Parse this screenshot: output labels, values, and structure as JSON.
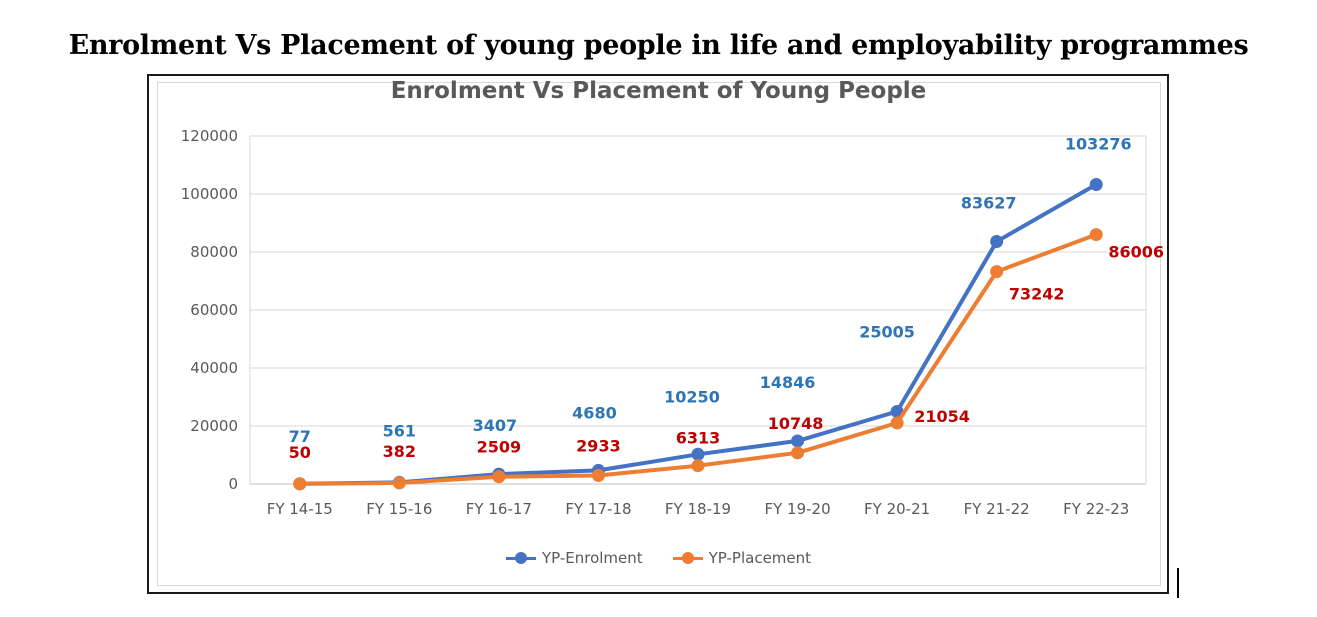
{
  "page": {
    "heading": "Enrolment Vs Placement of young people in life and employability programmes"
  },
  "chart_data": {
    "type": "line",
    "title": "Enrolment Vs Placement of Young People",
    "xlabel": "",
    "ylabel": "",
    "categories": [
      "FY 14-15",
      "FY 15-16",
      "FY 16-17",
      "FY 17-18",
      "FY 18-19",
      "FY 19-20",
      "FY 20-21",
      "FY 21-22",
      "FY 22-23"
    ],
    "ylim": [
      0,
      120000
    ],
    "yticks": [
      "0",
      "20000",
      "40000",
      "60000",
      "80000",
      "100000",
      "120000"
    ],
    "grid": true,
    "legend_position": "bottom",
    "series": [
      {
        "name": "YP-Enrolment",
        "color": "#4472c4",
        "label_color": "#2e75b6",
        "values": [
          77,
          561,
          3407,
          4680,
          10250,
          14846,
          25005,
          83627,
          103276
        ],
        "labels": [
          "77",
          "561",
          "3407",
          "4680",
          "10250",
          "14846",
          "25005",
          "83627",
          "103276"
        ]
      },
      {
        "name": "YP-Placement",
        "color": "#ed7d31",
        "label_color": "#c00000",
        "values": [
          50,
          382,
          2509,
          2933,
          6313,
          10748,
          21054,
          73242,
          86006
        ],
        "labels": [
          "50",
          "382",
          "2509",
          "2933",
          "6313",
          "10748",
          "21054",
          "73242",
          "86006"
        ]
      }
    ]
  }
}
